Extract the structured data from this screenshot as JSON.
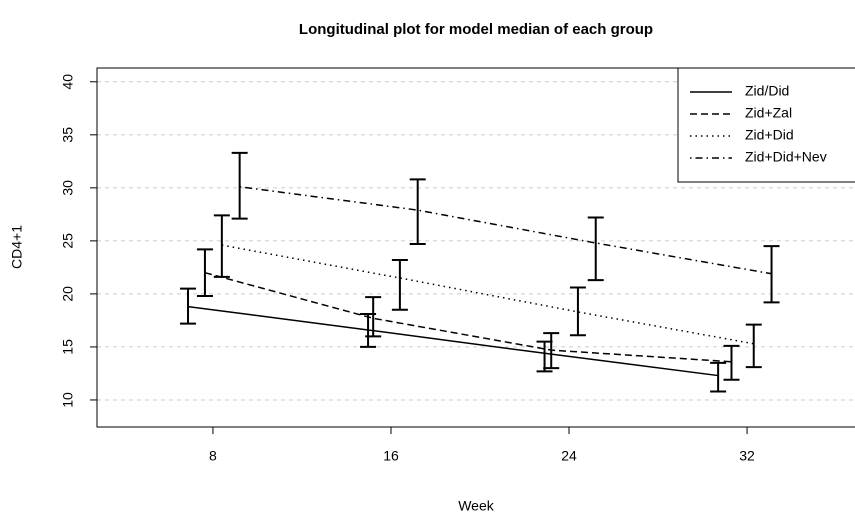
{
  "chart_data": {
    "type": "errorline",
    "title": "Longitudinal plot for model median of each group",
    "x_label": "Week",
    "y_label": "CD4+1",
    "xlim": [
      2.79,
      36.85
    ],
    "ylim": [
      7.45,
      41.3
    ],
    "xticks": [
      8,
      16,
      24,
      32
    ],
    "yticks": [
      10,
      15,
      20,
      25,
      30,
      35,
      40
    ],
    "grid": true,
    "legend": "topright",
    "series": [
      {
        "name": "Zid/Did",
        "color": "#000000",
        "dash": "solid",
        "x": [
          6.88,
          14.97,
          22.9,
          30.7
        ],
        "values": [
          18.8,
          16.6,
          14.4,
          12.3
        ],
        "lower": [
          17.2,
          15.0,
          12.7,
          10.8
        ],
        "upper": [
          20.5,
          18.1,
          15.5,
          13.5
        ]
      },
      {
        "name": "Zid+Zal",
        "color": "#000000",
        "dash": "dashed",
        "x": [
          7.64,
          15.2,
          23.2,
          31.3
        ],
        "values": [
          22.0,
          17.7,
          14.7,
          13.6
        ],
        "lower": [
          19.8,
          16.0,
          13.0,
          11.9
        ],
        "upper": [
          24.2,
          19.7,
          16.3,
          15.1
        ]
      },
      {
        "name": "Zid+Did",
        "color": "#000000",
        "dash": "dotted",
        "x": [
          8.4,
          16.4,
          24.4,
          32.3
        ],
        "values": [
          24.6,
          21.5,
          18.3,
          15.3
        ],
        "lower": [
          21.6,
          18.5,
          16.1,
          13.1
        ],
        "upper": [
          27.4,
          23.2,
          20.6,
          17.1
        ]
      },
      {
        "name": "Zid+Did+Nev",
        "color": "#000000",
        "dash": "dotdash",
        "x": [
          9.2,
          17.2,
          25.2,
          33.1
        ],
        "values": [
          30.1,
          27.9,
          24.8,
          21.9
        ],
        "lower": [
          27.1,
          24.7,
          21.3,
          19.2
        ],
        "upper": [
          33.3,
          30.8,
          27.2,
          24.5
        ]
      }
    ]
  }
}
